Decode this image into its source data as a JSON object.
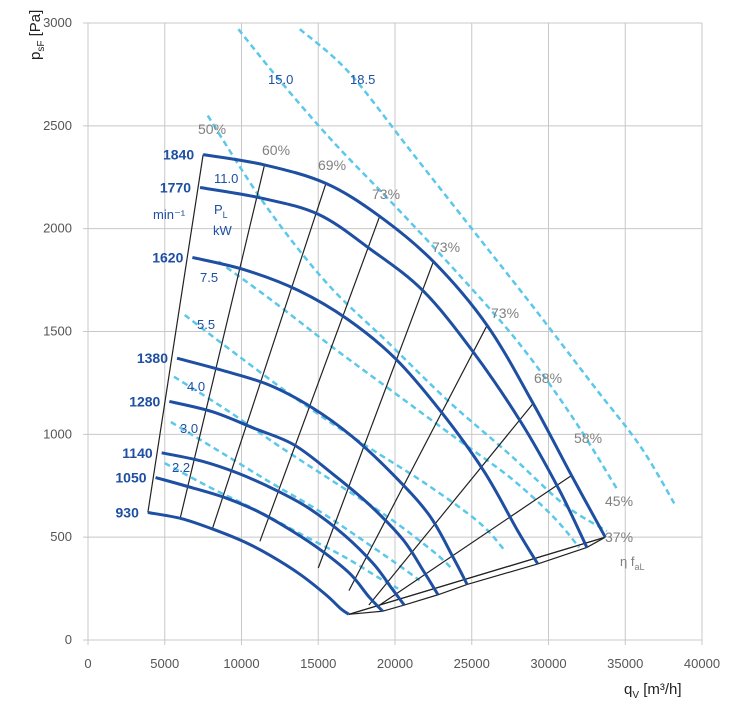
{
  "chart_data": {
    "type": "line",
    "title": "",
    "xlabel": "q",
    "xlabel_sub": "V",
    "xlabel_unit": "[m³/h]",
    "ylabel": "p",
    "ylabel_sub": "sF",
    "ylabel_unit": "[Pa]",
    "xlim": [
      0,
      40000
    ],
    "ylim": [
      0,
      3000
    ],
    "xticks": [
      0,
      5000,
      10000,
      15000,
      20000,
      25000,
      30000,
      35000,
      40000
    ],
    "yticks": [
      0,
      500,
      1000,
      1500,
      2000,
      2500,
      3000
    ],
    "grid": true,
    "colors": {
      "speed": "#1e4fa2",
      "speed_label": "#1e4fa2",
      "power": "#5bc8ea",
      "efficiency": "#222222",
      "efficiency_label": "#808080",
      "grid": "#c8c8c8"
    },
    "speed_curves": [
      {
        "name": "1840",
        "points": [
          [
            7500,
            2360
          ],
          [
            11500,
            2310
          ],
          [
            15500,
            2220
          ],
          [
            19000,
            2060
          ],
          [
            22500,
            1840
          ],
          [
            26000,
            1530
          ],
          [
            29000,
            1150
          ],
          [
            31500,
            800
          ],
          [
            33700,
            500
          ]
        ]
      },
      {
        "name": "1770",
        "points": [
          [
            7300,
            2200
          ],
          [
            11200,
            2150
          ],
          [
            15000,
            2070
          ],
          [
            18400,
            1900
          ],
          [
            21800,
            1700
          ],
          [
            25000,
            1410
          ],
          [
            28200,
            1060
          ],
          [
            30700,
            730
          ],
          [
            32500,
            450
          ]
        ]
      },
      {
        "name": "1620",
        "points": [
          [
            6800,
            1860
          ],
          [
            10200,
            1800
          ],
          [
            13700,
            1700
          ],
          [
            16900,
            1560
          ],
          [
            20000,
            1370
          ],
          [
            23000,
            1110
          ],
          [
            25800,
            820
          ],
          [
            28000,
            530
          ],
          [
            29300,
            370
          ]
        ]
      },
      {
        "name": "1380",
        "points": [
          [
            5800,
            1370
          ],
          [
            8800,
            1310
          ],
          [
            11800,
            1240
          ],
          [
            14600,
            1130
          ],
          [
            17200,
            990
          ],
          [
            19800,
            810
          ],
          [
            22200,
            610
          ],
          [
            23800,
            400
          ],
          [
            24700,
            270
          ]
        ]
      },
      {
        "name": "1280",
        "points": [
          [
            5300,
            1160
          ],
          [
            8100,
            1110
          ],
          [
            10800,
            1030
          ],
          [
            13400,
            950
          ],
          [
            15900,
            810
          ],
          [
            18300,
            660
          ],
          [
            20500,
            490
          ],
          [
            21900,
            330
          ],
          [
            22800,
            220
          ]
        ]
      },
      {
        "name": "1140",
        "points": [
          [
            4800,
            910
          ],
          [
            7400,
            870
          ],
          [
            9800,
            810
          ],
          [
            12200,
            730
          ],
          [
            14400,
            640
          ],
          [
            16700,
            510
          ],
          [
            18600,
            370
          ],
          [
            19800,
            250
          ],
          [
            20600,
            170
          ]
        ]
      },
      {
        "name": "1050",
        "points": [
          [
            4400,
            790
          ],
          [
            6800,
            740
          ],
          [
            9000,
            690
          ],
          [
            11200,
            620
          ],
          [
            13300,
            530
          ],
          [
            15300,
            430
          ],
          [
            17100,
            320
          ],
          [
            18300,
            210
          ],
          [
            19200,
            140
          ]
        ]
      },
      {
        "name": "930",
        "points": [
          [
            3900,
            620
          ],
          [
            6100,
            590
          ],
          [
            8100,
            540
          ],
          [
            10100,
            480
          ],
          [
            11900,
            410
          ],
          [
            13800,
            320
          ],
          [
            15500,
            220
          ],
          [
            16500,
            150
          ],
          [
            17000,
            125
          ]
        ]
      }
    ],
    "power_curves": [
      {
        "label": "18.5",
        "unit": "",
        "points": [
          [
            13800,
            2970
          ],
          [
            17000,
            2760
          ],
          [
            21000,
            2380
          ],
          [
            25000,
            2000
          ],
          [
            29000,
            1620
          ],
          [
            33000,
            1230
          ],
          [
            36000,
            940
          ],
          [
            38300,
            650
          ]
        ]
      },
      {
        "label": "15.0",
        "unit": "",
        "points": [
          [
            9800,
            2970
          ],
          [
            12500,
            2720
          ],
          [
            16000,
            2420
          ],
          [
            20000,
            2110
          ],
          [
            24000,
            1790
          ],
          [
            28000,
            1450
          ],
          [
            31500,
            1090
          ],
          [
            34500,
            730
          ]
        ]
      },
      {
        "label": "11.0",
        "unit": "kW",
        "points": [
          [
            7800,
            2550
          ],
          [
            11500,
            2120
          ],
          [
            15500,
            1740
          ],
          [
            19500,
            1450
          ],
          [
            23500,
            1160
          ],
          [
            27500,
            900
          ],
          [
            31000,
            660
          ],
          [
            33800,
            530
          ]
        ]
      },
      {
        "label": "7.5",
        "unit": "",
        "points": [
          [
            8500,
            1840
          ],
          [
            12000,
            1650
          ],
          [
            16000,
            1420
          ],
          [
            20000,
            1200
          ],
          [
            24000,
            980
          ],
          [
            27500,
            790
          ],
          [
            30300,
            600
          ],
          [
            32000,
            450
          ]
        ]
      },
      {
        "label": "5.5",
        "unit": "",
        "points": [
          [
            6300,
            1580
          ],
          [
            10000,
            1370
          ],
          [
            14000,
            1150
          ],
          [
            18000,
            950
          ],
          [
            22000,
            760
          ],
          [
            25500,
            570
          ],
          [
            27200,
            430
          ]
        ]
      },
      {
        "label": "4.0",
        "unit": "",
        "points": [
          [
            5600,
            1280
          ],
          [
            9000,
            1120
          ],
          [
            12500,
            940
          ],
          [
            16000,
            770
          ],
          [
            19500,
            600
          ],
          [
            22500,
            430
          ],
          [
            23800,
            340
          ]
        ]
      },
      {
        "label": "3.0",
        "unit": "",
        "points": [
          [
            5400,
            1060
          ],
          [
            8500,
            920
          ],
          [
            11800,
            770
          ],
          [
            15000,
            630
          ],
          [
            18000,
            480
          ],
          [
            20500,
            350
          ],
          [
            21600,
            290
          ]
        ]
      },
      {
        "label": "2.2",
        "unit": "",
        "points": [
          [
            5000,
            860
          ],
          [
            8000,
            740
          ],
          [
            11000,
            630
          ],
          [
            14000,
            510
          ],
          [
            16800,
            400
          ],
          [
            19000,
            300
          ],
          [
            20200,
            250
          ]
        ]
      }
    ],
    "efficiency_lines": [
      {
        "label": "60%",
        "points": [
          [
            11500,
            2310
          ],
          [
            6000,
            590
          ]
        ]
      },
      {
        "label": "69%",
        "points": [
          [
            15500,
            2220
          ],
          [
            8100,
            540
          ]
        ]
      },
      {
        "label": "73%",
        "points": [
          [
            19000,
            2060
          ],
          [
            11200,
            480
          ]
        ]
      },
      {
        "label": "73%",
        "points": [
          [
            22500,
            1840
          ],
          [
            15000,
            350
          ]
        ]
      },
      {
        "label": "73%",
        "points": [
          [
            26000,
            1530
          ],
          [
            17000,
            240
          ]
        ]
      },
      {
        "label": "68%",
        "points": [
          [
            29000,
            1150
          ],
          [
            18300,
            170
          ]
        ]
      },
      {
        "label": "58%",
        "points": [
          [
            31500,
            800
          ],
          [
            18800,
            160
          ]
        ]
      },
      {
        "label": "45%",
        "points": [
          [
            33700,
            500
          ],
          [
            17000,
            125
          ]
        ]
      },
      {
        "label": "37%",
        "points": [
          [
            33700,
            500
          ],
          [
            17000,
            125
          ]
        ]
      }
    ],
    "fan_boundary": [
      [
        3900,
        620
      ],
      [
        7500,
        2360
      ]
    ],
    "efficiency_extra_label": "50%",
    "legend": {
      "speed_unit": "min⁻¹",
      "power_symbol": "P",
      "power_symbol_sub": "L",
      "power_unit": "kW",
      "efficiency_symbol": "η f",
      "efficiency_symbol_sub": "aL"
    }
  }
}
